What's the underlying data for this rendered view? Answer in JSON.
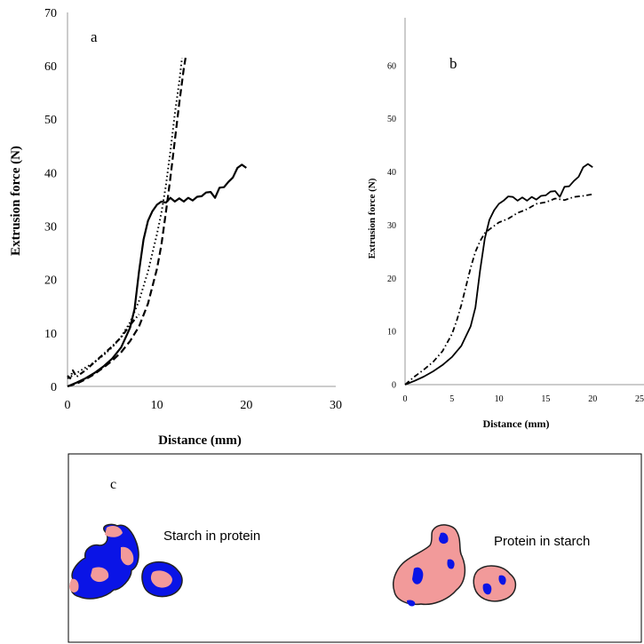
{
  "chart_data": [
    {
      "panel": "a",
      "type": "line",
      "xlabel": "Distance (mm)",
      "ylabel": "Extrusion force (N)",
      "xlim": [
        0,
        30
      ],
      "ylim": [
        0,
        70
      ],
      "xticks": [
        0,
        10,
        20,
        30
      ],
      "yticks": [
        0,
        10,
        20,
        30,
        40,
        50,
        60,
        70
      ],
      "grid": false,
      "series": [
        {
          "style": "solid",
          "x": [
            0,
            1,
            2,
            3,
            4,
            5,
            6,
            7,
            7.5,
            8,
            8.5,
            9,
            9.5,
            10,
            10.5,
            11,
            11.5,
            12,
            12.5,
            13,
            13.5,
            14,
            14.5,
            15,
            15.5,
            16,
            16.5,
            17,
            17.5,
            18,
            18.5,
            19,
            19.5,
            20
          ],
          "y": [
            0,
            0.7,
            1.5,
            2.5,
            3.7,
            5.2,
            7.3,
            11,
            14.5,
            21.5,
            27.5,
            31,
            32.8,
            34,
            34.6,
            34.4,
            35.3,
            34.6,
            35.2,
            34.6,
            35.3,
            34.8,
            35.5,
            35.6,
            36.3,
            36.4,
            35.3,
            37.2,
            37.3,
            38.3,
            39.1,
            40.9,
            41.5,
            40.9
          ]
        },
        {
          "style": "dotted",
          "x": [
            0,
            0.5,
            1,
            2,
            3,
            4,
            5,
            6,
            7,
            8,
            9,
            10,
            10.5,
            11,
            11.5,
            12,
            12.5,
            12.8
          ],
          "y": [
            1.5,
            2,
            2.5,
            3.5,
            4.5,
            5.8,
            7.3,
            9.3,
            12,
            16,
            21.5,
            28.5,
            32.5,
            37.5,
            44,
            51,
            57,
            61.5
          ]
        },
        {
          "style": "dashed",
          "x": [
            0,
            1,
            2,
            3,
            4,
            5,
            6,
            7,
            8,
            9,
            10,
            10.5,
            11,
            11.5,
            12,
            12.5,
            13,
            13.2
          ],
          "y": [
            0,
            0.5,
            1.3,
            2.3,
            3.5,
            4.8,
            6.4,
            8.5,
            11.2,
            15.5,
            22,
            26.5,
            32.5,
            39,
            46,
            53,
            59.5,
            61.5
          ]
        },
        {
          "style": "dash-dot",
          "x": [
            0,
            0.3,
            0.6,
            1,
            2,
            3,
            4,
            5,
            6,
            7,
            7.5,
            8
          ],
          "y": [
            2,
            1.5,
            3,
            1.8,
            3,
            4.5,
            6,
            7.5,
            9.2,
            11.5,
            12.5,
            13.5
          ]
        }
      ]
    },
    {
      "panel": "b",
      "type": "line",
      "xlabel": "Distance (mm)",
      "ylabel": "Extrusion force (N)",
      "xlim": [
        0,
        25
      ],
      "ylim": [
        0,
        70
      ],
      "xticks": [
        0,
        5,
        10,
        15,
        20,
        25
      ],
      "yticks": [
        0,
        10,
        20,
        30,
        40,
        50,
        60
      ],
      "grid": false,
      "series": [
        {
          "style": "solid",
          "x": [
            0,
            1,
            2,
            3,
            4,
            5,
            6,
            7,
            7.5,
            8,
            8.5,
            9,
            9.5,
            10,
            10.5,
            11,
            11.5,
            12,
            12.5,
            13,
            13.5,
            14,
            14.5,
            15,
            15.5,
            16,
            16.5,
            17,
            17.5,
            18,
            18.5,
            19,
            19.5,
            20
          ],
          "y": [
            0,
            0.7,
            1.5,
            2.5,
            3.7,
            5.2,
            7.3,
            11,
            14.5,
            21.5,
            27.5,
            31,
            32.8,
            34,
            34.6,
            35.4,
            35.3,
            34.6,
            35.2,
            34.6,
            35.3,
            34.8,
            35.5,
            35.6,
            36.3,
            36.4,
            35.3,
            37.2,
            37.3,
            38.3,
            39.1,
            40.9,
            41.5,
            40.9
          ]
        },
        {
          "style": "dash-dot",
          "x": [
            0,
            1,
            2,
            3,
            4,
            5,
            5.5,
            6,
            6.5,
            7,
            7.5,
            8,
            8.5,
            9,
            10,
            11,
            12,
            13,
            14,
            15,
            16,
            17,
            18,
            19,
            20
          ],
          "y": [
            0,
            1.5,
            2.8,
            4.3,
            6.3,
            9.5,
            12,
            15,
            18.5,
            22,
            25,
            27,
            28.5,
            29.2,
            30.5,
            31.2,
            32.3,
            33,
            34,
            34.3,
            35,
            34.7,
            35.3,
            35.5,
            35.8
          ]
        }
      ]
    }
  ],
  "panel_c": {
    "label": "c",
    "left_caption": "Starch in protein",
    "right_caption": "Protein in starch",
    "colors": {
      "blue": "#0a14e6",
      "pink": "#f29a9a",
      "outline": "#222222"
    }
  }
}
